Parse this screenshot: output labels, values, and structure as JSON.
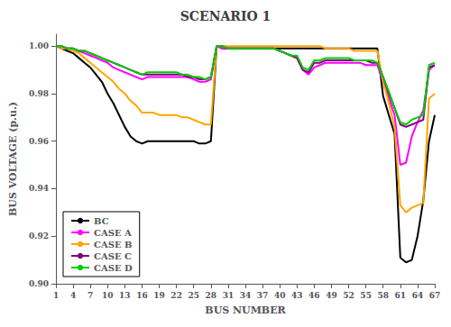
{
  "chart_data": {
    "type": "line",
    "title": "SCENARIO 1",
    "x_label": "BUS NUMBER",
    "y_label": "BUS VOLTAGE (p.u.)",
    "xlim": [
      1,
      67
    ],
    "xticks": [
      1,
      4,
      7,
      10,
      13,
      16,
      19,
      22,
      25,
      28,
      31,
      34,
      37,
      40,
      43,
      46,
      49,
      52,
      55,
      58,
      61,
      64,
      67
    ],
    "ylim": [
      0.9,
      1.005
    ],
    "yticks": [
      {
        "value": 0.9,
        "label": "0.90"
      },
      {
        "value": 0.92,
        "label": "0.92"
      },
      {
        "value": 0.94,
        "label": "0.94"
      },
      {
        "value": 0.96,
        "label": "0.96"
      },
      {
        "value": 0.98,
        "label": "0.98"
      },
      {
        "value": 1.0,
        "label": "1.00"
      }
    ],
    "grid": false,
    "legend": "lower left",
    "x": [
      1,
      2,
      3,
      4,
      5,
      6,
      7,
      8,
      9,
      10,
      11,
      12,
      13,
      14,
      15,
      16,
      17,
      18,
      19,
      20,
      21,
      22,
      23,
      24,
      25,
      26,
      27,
      28,
      29,
      30,
      31,
      32,
      33,
      34,
      35,
      36,
      37,
      38,
      39,
      40,
      41,
      42,
      43,
      44,
      45,
      46,
      47,
      48,
      49,
      50,
      51,
      52,
      53,
      54,
      55,
      56,
      57,
      58,
      59,
      60,
      61,
      62,
      63,
      64,
      65,
      66,
      67
    ],
    "series": [
      {
        "name": "BC",
        "color": "#000000",
        "values": [
          1.0,
          0.999,
          0.998,
          0.997,
          0.995,
          0.993,
          0.991,
          0.988,
          0.985,
          0.98,
          0.976,
          0.971,
          0.966,
          0.962,
          0.96,
          0.959,
          0.96,
          0.96,
          0.96,
          0.96,
          0.96,
          0.96,
          0.96,
          0.96,
          0.96,
          0.959,
          0.959,
          0.96,
          1.0,
          0.999,
          0.999,
          0.999,
          0.999,
          0.999,
          0.999,
          0.999,
          0.999,
          0.999,
          0.999,
          0.999,
          0.999,
          0.999,
          0.999,
          0.999,
          0.999,
          0.999,
          0.999,
          0.999,
          0.999,
          0.999,
          0.999,
          0.999,
          0.999,
          0.999,
          0.999,
          0.999,
          0.999,
          0.979,
          0.971,
          0.963,
          0.911,
          0.909,
          0.91,
          0.92,
          0.935,
          0.96,
          0.971
        ]
      },
      {
        "name": "CASE A",
        "color": "#ff00ff",
        "values": [
          1.0,
          0.999,
          0.999,
          0.999,
          0.998,
          0.997,
          0.996,
          0.995,
          0.994,
          0.993,
          0.991,
          0.99,
          0.989,
          0.988,
          0.987,
          0.986,
          0.987,
          0.987,
          0.987,
          0.987,
          0.987,
          0.987,
          0.987,
          0.987,
          0.986,
          0.985,
          0.985,
          0.986,
          1.0,
          0.999,
          0.999,
          0.999,
          0.999,
          0.999,
          0.999,
          0.999,
          0.999,
          0.999,
          0.999,
          0.998,
          0.997,
          0.996,
          0.995,
          0.99,
          0.988,
          0.991,
          0.992,
          0.993,
          0.993,
          0.993,
          0.993,
          0.993,
          0.993,
          0.993,
          0.992,
          0.992,
          0.992,
          0.985,
          0.978,
          0.971,
          0.95,
          0.951,
          0.962,
          0.968,
          0.973,
          0.99,
          0.992
        ]
      },
      {
        "name": "CASE B",
        "color": "#ffa500",
        "values": [
          1.0,
          0.999,
          0.999,
          0.998,
          0.997,
          0.995,
          0.993,
          0.991,
          0.989,
          0.987,
          0.985,
          0.982,
          0.98,
          0.977,
          0.975,
          0.972,
          0.972,
          0.972,
          0.971,
          0.971,
          0.971,
          0.971,
          0.97,
          0.97,
          0.969,
          0.968,
          0.967,
          0.967,
          1.0,
          1.0,
          1.0,
          1.0,
          1.0,
          1.0,
          1.0,
          1.0,
          1.0,
          1.0,
          1.0,
          1.0,
          1.0,
          1.0,
          1.0,
          1.0,
          1.0,
          1.0,
          1.0,
          0.999,
          0.999,
          0.999,
          0.999,
          0.999,
          0.998,
          0.998,
          0.998,
          0.998,
          0.998,
          0.985,
          0.976,
          0.966,
          0.933,
          0.93,
          0.932,
          0.933,
          0.934,
          0.978,
          0.98
        ]
      },
      {
        "name": "CASE C",
        "color": "#800080",
        "values": [
          1.0,
          1.0,
          0.999,
          0.999,
          0.998,
          0.998,
          0.997,
          0.996,
          0.995,
          0.994,
          0.993,
          0.992,
          0.991,
          0.99,
          0.989,
          0.988,
          0.988,
          0.988,
          0.988,
          0.988,
          0.988,
          0.988,
          0.988,
          0.987,
          0.987,
          0.986,
          0.986,
          0.987,
          1.0,
          1.0,
          0.999,
          0.999,
          0.999,
          0.999,
          0.999,
          0.999,
          0.999,
          0.999,
          0.999,
          0.998,
          0.997,
          0.996,
          0.995,
          0.99,
          0.989,
          0.993,
          0.993,
          0.994,
          0.994,
          0.994,
          0.994,
          0.994,
          0.994,
          0.994,
          0.994,
          0.993,
          0.993,
          0.987,
          0.98,
          0.974,
          0.967,
          0.966,
          0.967,
          0.968,
          0.969,
          0.991,
          0.992
        ]
      },
      {
        "name": "CASE D",
        "color": "#00cc00",
        "values": [
          1.0,
          1.0,
          0.999,
          0.999,
          0.998,
          0.998,
          0.997,
          0.996,
          0.995,
          0.994,
          0.993,
          0.992,
          0.991,
          0.99,
          0.989,
          0.988,
          0.989,
          0.989,
          0.989,
          0.989,
          0.989,
          0.989,
          0.988,
          0.988,
          0.987,
          0.987,
          0.986,
          0.987,
          1.0,
          1.0,
          0.999,
          0.999,
          0.999,
          0.999,
          0.999,
          0.999,
          0.999,
          0.999,
          0.999,
          0.998,
          0.997,
          0.996,
          0.996,
          0.991,
          0.99,
          0.994,
          0.994,
          0.995,
          0.995,
          0.995,
          0.995,
          0.995,
          0.994,
          0.994,
          0.994,
          0.994,
          0.993,
          0.987,
          0.981,
          0.974,
          0.968,
          0.967,
          0.969,
          0.97,
          0.971,
          0.992,
          0.993
        ]
      }
    ]
  }
}
